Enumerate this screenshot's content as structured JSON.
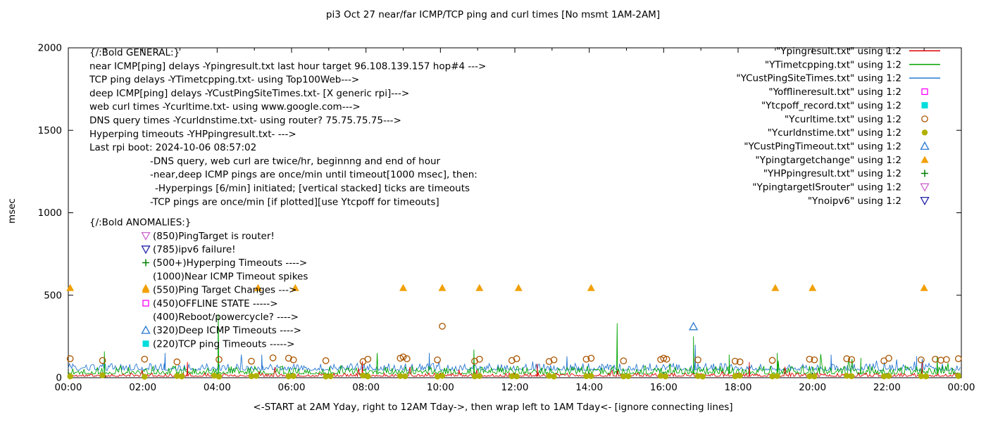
{
  "chart_data": {
    "type": "line",
    "title": "pi3 Oct 27  near/far ICMP/TCP ping and curl times [No msmt 1AM-2AM]",
    "xlabel": "<-START at 2AM Yday, right to 12AM Tday->, then wrap left to 1AM Tday<- [ignore connecting lines]",
    "ylabel": "msec",
    "ylim": [
      0,
      2000
    ],
    "xlim_hours": [
      0,
      24
    ],
    "y_ticks": [
      0,
      500,
      1000,
      1500,
      2000
    ],
    "x_tick_labels": [
      "00:00",
      "02:00",
      "04:00",
      "06:00",
      "08:00",
      "10:00",
      "12:00",
      "14:00",
      "16:00",
      "18:00",
      "20:00",
      "22:00",
      "00:00"
    ],
    "grid": false,
    "legend_position": "top-right-inside",
    "line_series": [
      {
        "name": "YCustPingSiteTimes.txt",
        "color": "#2878d0",
        "base": 45,
        "jitter": 42,
        "spike_extra": 60,
        "seed": 33,
        "spikes": [
          [
            2.6,
            150
          ],
          [
            5.2,
            140
          ],
          [
            9.7,
            150
          ],
          [
            13.4,
            130
          ],
          [
            16.85,
            200
          ],
          [
            20.5,
            140
          ],
          [
            22.8,
            130
          ]
        ]
      },
      {
        "name": "YTimetcpping.txt",
        "color": "#00a400",
        "base": 22,
        "jitter": 50,
        "spike_extra": 90,
        "seed": 22,
        "spikes": [
          [
            0.97,
            160
          ],
          [
            4.03,
            385
          ],
          [
            8.3,
            150
          ],
          [
            10.9,
            170
          ],
          [
            14.75,
            330
          ],
          [
            16.8,
            250
          ],
          [
            17.76,
            140
          ],
          [
            19.05,
            150
          ],
          [
            21.3,
            120
          ],
          [
            23.35,
            130
          ]
        ]
      },
      {
        "name": "Ypingresult.txt",
        "color": "#e00000",
        "base": 8,
        "jitter": 20,
        "spike_extra": 60,
        "seed": 11,
        "spikes": [
          [
            3.2,
            95
          ],
          [
            7.9,
            100
          ],
          [
            12.6,
            85
          ],
          [
            18.3,
            95
          ],
          [
            22.95,
            90
          ]
        ]
      }
    ],
    "scatter_series": [
      {
        "name": "Ycurltime.txt",
        "marker": "circle-open",
        "color": "#aa5500",
        "points": [
          [
            0.05,
            115
          ],
          [
            0.92,
            104
          ],
          [
            2.05,
            112
          ],
          [
            2.92,
            96
          ],
          [
            4.05,
            110
          ],
          [
            4.92,
            100
          ],
          [
            5.5,
            120
          ],
          [
            5.92,
            118
          ],
          [
            6.05,
            108
          ],
          [
            6.92,
            103
          ],
          [
            7.92,
            98
          ],
          [
            8.05,
            112
          ],
          [
            8.92,
            118
          ],
          [
            9.0,
            126
          ],
          [
            9.1,
            115
          ],
          [
            9.92,
            108
          ],
          [
            10.05,
            312
          ],
          [
            10.92,
            100
          ],
          [
            11.05,
            112
          ],
          [
            11.92,
            104
          ],
          [
            12.05,
            115
          ],
          [
            12.92,
            98
          ],
          [
            13.05,
            108
          ],
          [
            13.92,
            112
          ],
          [
            14.05,
            118
          ],
          [
            14.92,
            102
          ],
          [
            15.92,
            110
          ],
          [
            16.0,
            118
          ],
          [
            16.08,
            112
          ],
          [
            16.92,
            108
          ],
          [
            17.92,
            100
          ],
          [
            18.05,
            96
          ],
          [
            18.92,
            105
          ],
          [
            19.92,
            112
          ],
          [
            20.05,
            108
          ],
          [
            20.92,
            115
          ],
          [
            21.05,
            110
          ],
          [
            21.92,
            102
          ],
          [
            22.05,
            118
          ],
          [
            22.92,
            108
          ],
          [
            23.3,
            112
          ],
          [
            23.45,
            106
          ],
          [
            23.6,
            110
          ],
          [
            23.92,
            115
          ]
        ]
      },
      {
        "name": "Ycurldnstime.txt",
        "marker": "circle-filled",
        "color": "#b0b000",
        "points": [
          [
            0.05,
            8
          ],
          [
            0.92,
            14
          ],
          [
            2.05,
            6
          ],
          [
            2.92,
            10
          ],
          [
            3.05,
            8
          ],
          [
            3.92,
            12
          ],
          [
            4.05,
            7
          ],
          [
            4.92,
            9
          ],
          [
            5.05,
            11
          ],
          [
            5.92,
            8
          ],
          [
            6.05,
            10
          ],
          [
            6.92,
            7
          ],
          [
            7.05,
            9
          ],
          [
            7.92,
            13
          ],
          [
            8.05,
            8
          ],
          [
            8.92,
            10
          ],
          [
            9.05,
            9
          ],
          [
            9.92,
            7
          ],
          [
            10.05,
            11
          ],
          [
            10.92,
            8
          ],
          [
            11.05,
            10
          ],
          [
            11.92,
            9
          ],
          [
            12.05,
            8
          ],
          [
            12.92,
            11
          ],
          [
            13.05,
            7
          ],
          [
            13.92,
            9
          ],
          [
            14.05,
            10
          ],
          [
            14.92,
            8
          ],
          [
            15.05,
            9
          ],
          [
            15.92,
            11
          ],
          [
            16.05,
            8
          ],
          [
            16.92,
            10
          ],
          [
            17.05,
            7
          ],
          [
            17.92,
            9
          ],
          [
            18.05,
            12
          ],
          [
            18.92,
            8
          ],
          [
            19.05,
            10
          ],
          [
            19.92,
            9
          ],
          [
            20.05,
            8
          ],
          [
            20.92,
            11
          ],
          [
            21.05,
            9
          ],
          [
            21.92,
            8
          ],
          [
            22.05,
            10
          ],
          [
            22.92,
            9
          ],
          [
            23.05,
            8
          ],
          [
            23.92,
            10
          ]
        ]
      },
      {
        "name": "Ypingtargetchange",
        "marker": "triangle-up-filled",
        "color": "#f2a007",
        "points": [
          [
            0.05,
            545
          ],
          [
            2.08,
            545
          ],
          [
            5.1,
            545
          ],
          [
            6.1,
            545
          ],
          [
            9.0,
            545
          ],
          [
            10.05,
            545
          ],
          [
            11.05,
            545
          ],
          [
            12.1,
            545
          ],
          [
            14.05,
            545
          ],
          [
            19.0,
            545
          ],
          [
            20.0,
            545
          ],
          [
            23.0,
            545
          ]
        ]
      },
      {
        "name": "YCustPingTimeout.txt",
        "marker": "triangle-up-open",
        "color": "#2878d0",
        "points": [
          [
            16.8,
            310
          ]
        ]
      }
    ],
    "annotations": {
      "general_lines": [
        "{/:Bold GENERAL:}",
        "near ICMP[ping] delays -Ypingresult.txt last hour target 96.108.139.157 hop#4 --->",
        "TCP ping delays -YTimetcpping.txt- using Top100Web--->",
        "deep ICMP[ping] delays -YCustPingSiteTimes.txt- [X generic rpi]--->",
        "web curl times -Ycurltime.txt- using www.google.com--->",
        "DNS query times -Ycurldnstime.txt- using router? 75.75.75.75--->",
        "Hyperping timeouts -YHPpingresult.txt- --->",
        "Last rpi boot: 2024-10-06 08:57:02"
      ],
      "indent_lines": [
        "-DNS query, web curl are twice/hr, beginnng and end of hour",
        "-near,deep ICMP pings are once/min until timeout[1000 msec], then:",
        " -Hyperpings [6/min] initiated; [vertical stacked] ticks are timeouts",
        "-TCP pings are once/min [if plotted][use Ytcpoff for timeouts]"
      ],
      "anomalies_header": "{/:Bold ANOMALIES:}",
      "anomalies": [
        {
          "marker": "triangle-down-open",
          "color": "#cc66cc",
          "text": "(850)PingTarget is router!"
        },
        {
          "marker": "triangle-down-open",
          "color": "#2222aa",
          "text": "(785)ipv6 failure!"
        },
        {
          "marker": "plus",
          "color": "#008000",
          "text": "(500+)Hyperping Timeouts ---->"
        },
        {
          "marker": "none",
          "color": "#000000",
          "text": "(1000)Near ICMP Timeout spikes"
        },
        {
          "marker": "triangle-up-filled",
          "color": "#f2a007",
          "text": "(550)Ping Target Changes --->"
        },
        {
          "marker": "square-open",
          "color": "#ff00ff",
          "text": "(450)OFFLINE STATE ----->"
        },
        {
          "marker": "none",
          "color": "#000000",
          "text": "(400)Reboot/powercycle? ---->"
        },
        {
          "marker": "triangle-up-open",
          "color": "#2878d0",
          "text": "(320)Deep ICMP Timeouts ---->"
        },
        {
          "marker": "square-filled",
          "color": "#00dddd",
          "text": "(220)TCP ping Timeouts ----->"
        }
      ]
    },
    "legend": {
      "entries": [
        {
          "label": "\"Ypingresult.txt\" using 1:2",
          "sample": "line",
          "color": "#e00000"
        },
        {
          "label": "\"YTimetcpping.txt\" using 1:2",
          "sample": "line",
          "color": "#00a400"
        },
        {
          "label": "\"YCustPingSiteTimes.txt\" using 1:2",
          "sample": "line",
          "color": "#2878d0"
        },
        {
          "label": "\"Yofflineresult.txt\" using 1:2",
          "sample": "square-open",
          "color": "#ff00ff"
        },
        {
          "label": "\"Ytcpoff_record.txt\" using 1:2",
          "sample": "square-filled",
          "color": "#00dddd"
        },
        {
          "label": "\"Ycurltime.txt\" using 1:2",
          "sample": "circle-open",
          "color": "#aa5500"
        },
        {
          "label": "\"Ycurldnstime.txt\" using 1:2",
          "sample": "circle-filled",
          "color": "#b0b000"
        },
        {
          "label": "\"YCustPingTimeout.txt\" using 1:2",
          "sample": "triangle-up-open",
          "color": "#2878d0"
        },
        {
          "label": "\"Ypingtargetchange\" using 1:2",
          "sample": "triangle-up-filled",
          "color": "#f2a007"
        },
        {
          "label": "\"YHPpingresult.txt\" using 1:2",
          "sample": "plus",
          "color": "#008000"
        },
        {
          "label": "\"YpingtargetISrouter\" using 1:2",
          "sample": "triangle-down-open",
          "color": "#cc66cc"
        },
        {
          "label": "\"Ynoipv6\" using 1:2",
          "sample": "triangle-down-open",
          "color": "#2222aa"
        }
      ]
    }
  }
}
